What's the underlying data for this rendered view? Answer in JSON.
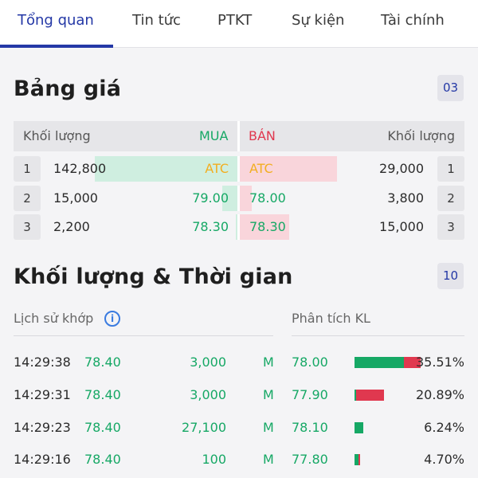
{
  "tabs": [
    "Tổng quan",
    "Tin tức",
    "PTKT",
    "Sự kiện",
    "Tài chính"
  ],
  "price_board": {
    "title": "Bảng giá",
    "badge": "03",
    "header": {
      "vol_left": "Khối lượng",
      "buy": "MUA",
      "sell": "BÁN",
      "vol_right": "Khối lượng"
    },
    "rows": [
      {
        "num": "1",
        "bid_vol": "142,800",
        "bid_price": "ATC",
        "ask_price": "ATC",
        "ask_vol": "29,000",
        "num_right": "1",
        "bid_fill": 0.73,
        "ask_fill": 0.5,
        "special": true
      },
      {
        "num": "2",
        "bid_vol": "15,000",
        "bid_price": "79.00",
        "ask_price": "78.00",
        "ask_vol": "3,800",
        "num_right": "2",
        "bid_fill": 0.08,
        "ask_fill": 0.07,
        "special": false
      },
      {
        "num": "3",
        "bid_vol": "2,200",
        "bid_price": "78.30",
        "ask_price": "78.30",
        "ask_vol": "15,000",
        "num_right": "3",
        "bid_fill": 0.01,
        "ask_fill": 0.26,
        "special": false
      }
    ]
  },
  "time_sales": {
    "title": "Khối lượng & Thời gian",
    "badge": "10",
    "history_label": "Lịch sử khớp",
    "info_glyph": "i",
    "analysis_label": "Phân tích KL",
    "trades": [
      {
        "time": "14:29:38",
        "price": "78.40",
        "volume": "3,000",
        "side": "M"
      },
      {
        "time": "14:29:31",
        "price": "78.40",
        "volume": "3,000",
        "side": "M"
      },
      {
        "time": "14:29:23",
        "price": "78.40",
        "volume": "27,100",
        "side": "M"
      },
      {
        "time": "14:29:16",
        "price": "78.40",
        "volume": "100",
        "side": "M"
      }
    ],
    "analysis": [
      {
        "price": "78.00",
        "pct": "35.51%",
        "buy_share": 0.35,
        "sell_share": 0.12
      },
      {
        "price": "77.90",
        "pct": "20.89%",
        "buy_share": 0.01,
        "sell_share": 0.2
      },
      {
        "price": "78.10",
        "pct": "6.24%",
        "buy_share": 0.06,
        "sell_share": 0.0
      },
      {
        "price": "77.80",
        "pct": "4.70%",
        "buy_share": 0.03,
        "sell_share": 0.01
      }
    ]
  },
  "colors": {
    "accent": "#2438a6",
    "buy": "#16a865",
    "sell": "#e0384f",
    "atc": "#f2ae21"
  }
}
